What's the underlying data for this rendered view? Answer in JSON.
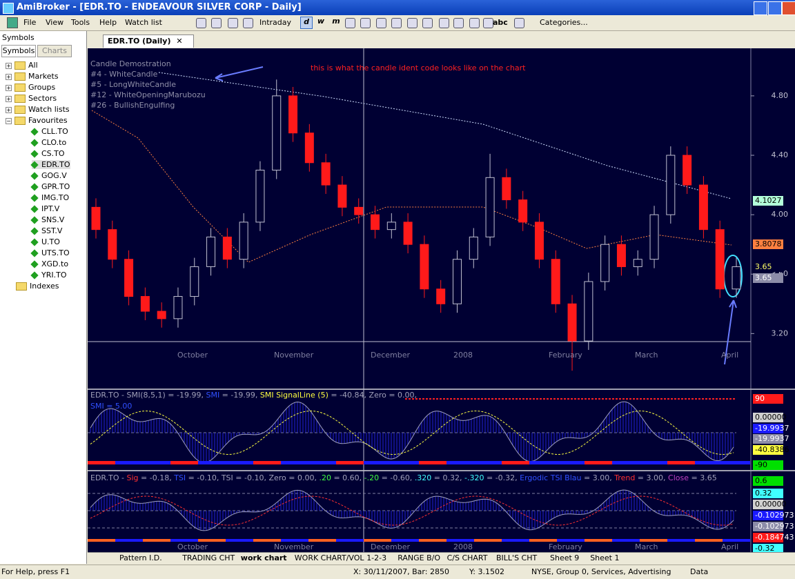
{
  "window": {
    "title": "AmiBroker - [EDR.TO - ENDEAVOUR SILVER CORP - Daily]"
  },
  "menu": [
    "File",
    "View",
    "Tools",
    "Help",
    "Watch list"
  ],
  "toolbar": {
    "buttons": [
      "d",
      "w",
      "m"
    ],
    "intraday": "Intraday",
    "abc": "abc",
    "categories": "Categories..."
  },
  "sidebar": {
    "title": "Symbols",
    "tabs": [
      "Symbols",
      "Charts"
    ],
    "folders": [
      "All",
      "Markets",
      "Groups",
      "Sectors",
      "Watch lists"
    ],
    "favourites": {
      "label": "Favourites",
      "symbols": [
        "CLL.TO",
        "CLO.to",
        "CS.TO",
        "EDR.TO",
        "GOG.V",
        "GPR.TO",
        "IMG.TO",
        "IPT.V",
        "SNS.V",
        "SST.V",
        "U.TO",
        "UTS.TO",
        "XGD.to",
        "YRI.TO"
      ]
    },
    "last": "Indexes"
  },
  "document_tab": "EDR.TO (Daily)",
  "chart_data": {
    "type": "candlestick",
    "annotations": [
      "Candle Demostration",
      "#4 - WhiteCandle",
      "#5 - LongWhiteCandle",
      "#12 - WhiteOpeningMarubozu",
      "#26 - BullishEngulfing"
    ],
    "note": "this is what the candle ident code looks like on the chart",
    "up_color": "#000033",
    "down_color": "#ff1a1a",
    "candles": [
      {
        "open": 4.05,
        "high": 4.11,
        "low": 3.84,
        "close": 3.9
      },
      {
        "open": 3.9,
        "high": 3.96,
        "low": 3.64,
        "close": 3.7
      },
      {
        "open": 3.7,
        "high": 3.76,
        "low": 3.39,
        "close": 3.45
      },
      {
        "open": 3.45,
        "high": 3.51,
        "low": 3.29,
        "close": 3.35
      },
      {
        "open": 3.35,
        "high": 3.41,
        "low": 3.24,
        "close": 3.3
      },
      {
        "open": 3.3,
        "high": 3.51,
        "low": 3.24,
        "close": 3.45
      },
      {
        "open": 3.45,
        "high": 3.71,
        "low": 3.39,
        "close": 3.65
      },
      {
        "open": 3.65,
        "high": 3.91,
        "low": 3.59,
        "close": 3.85
      },
      {
        "open": 3.85,
        "high": 3.91,
        "low": 3.64,
        "close": 3.7
      },
      {
        "open": 3.7,
        "high": 4.01,
        "low": 3.64,
        "close": 3.95
      },
      {
        "open": 3.95,
        "high": 4.36,
        "low": 3.89,
        "close": 4.3
      },
      {
        "open": 4.3,
        "high": 4.91,
        "low": 4.24,
        "close": 4.8
      },
      {
        "open": 4.8,
        "high": 4.86,
        "low": 4.49,
        "close": 4.55
      },
      {
        "open": 4.55,
        "high": 4.61,
        "low": 4.29,
        "close": 4.35
      },
      {
        "open": 4.35,
        "high": 4.41,
        "low": 4.14,
        "close": 4.2
      },
      {
        "open": 4.2,
        "high": 4.26,
        "low": 3.99,
        "close": 4.05
      },
      {
        "open": 4.05,
        "high": 4.11,
        "low": 3.94,
        "close": 4.0
      },
      {
        "open": 4.0,
        "high": 4.06,
        "low": 3.84,
        "close": 3.9
      },
      {
        "open": 3.9,
        "high": 4.01,
        "low": 3.84,
        "close": 3.95
      },
      {
        "open": 3.95,
        "high": 4.01,
        "low": 3.74,
        "close": 3.8
      },
      {
        "open": 3.8,
        "high": 3.86,
        "low": 3.44,
        "close": 3.5
      },
      {
        "open": 3.5,
        "high": 3.56,
        "low": 3.34,
        "close": 3.4
      },
      {
        "open": 3.4,
        "high": 3.76,
        "low": 3.34,
        "close": 3.7
      },
      {
        "open": 3.7,
        "high": 3.91,
        "low": 3.64,
        "close": 3.85
      },
      {
        "open": 3.85,
        "high": 4.41,
        "low": 3.79,
        "close": 4.25
      },
      {
        "open": 4.25,
        "high": 4.31,
        "low": 4.04,
        "close": 4.1
      },
      {
        "open": 4.1,
        "high": 4.16,
        "low": 3.89,
        "close": 3.95
      },
      {
        "open": 3.95,
        "high": 4.01,
        "low": 3.64,
        "close": 3.7
      },
      {
        "open": 3.7,
        "high": 3.76,
        "low": 3.34,
        "close": 3.4
      },
      {
        "open": 3.4,
        "high": 3.46,
        "low": 2.95,
        "close": 3.15
      },
      {
        "open": 3.15,
        "high": 3.61,
        "low": 3.09,
        "close": 3.55
      },
      {
        "open": 3.55,
        "high": 3.86,
        "low": 3.49,
        "close": 3.8
      },
      {
        "open": 3.8,
        "high": 3.86,
        "low": 3.59,
        "close": 3.65
      },
      {
        "open": 3.65,
        "high": 3.76,
        "low": 3.59,
        "close": 3.7
      },
      {
        "open": 3.7,
        "high": 4.06,
        "low": 3.64,
        "close": 4.0
      },
      {
        "open": 4.0,
        "high": 4.46,
        "low": 3.94,
        "close": 4.4
      },
      {
        "open": 4.4,
        "high": 4.46,
        "low": 4.14,
        "close": 4.2
      },
      {
        "open": 4.2,
        "high": 4.26,
        "low": 3.84,
        "close": 3.9
      },
      {
        "open": 3.9,
        "high": 3.96,
        "low": 3.44,
        "close": 3.5
      },
      {
        "open": 3.5,
        "high": 3.71,
        "low": 3.44,
        "close": 3.65
      }
    ],
    "ylim": [
      2.83,
      5.12
    ],
    "yticks": [
      {
        "value": 4.8,
        "label": "4.80"
      },
      {
        "value": 4.4,
        "label": "4.40"
      },
      {
        "value": 4.0,
        "label": "4.00"
      },
      {
        "value": 3.6,
        "label": "3.60"
      },
      {
        "value": 3.2,
        "label": "3.20"
      }
    ],
    "value_boxes": [
      {
        "label": "4.1027",
        "bg": "#b3ffd9",
        "fg": "#000000"
      },
      {
        "label": "3.8078",
        "bg": "#ff8040",
        "fg": "#000000"
      },
      {
        "label": "3.65",
        "bg": "#000033",
        "fg": "#ffff66"
      },
      {
        "label": "3.65",
        "bg": "#8c8ca8",
        "fg": "#ffffff"
      }
    ],
    "x_labels": [
      "October",
      "November",
      "December",
      "2008",
      "February",
      "March",
      "April"
    ],
    "smi": {
      "header": [
        {
          "text": "EDR.TO - SMI(8,5,1) = -19.99, ",
          "color": "#a0a0b8"
        },
        {
          "text": "SMI",
          "color": "#3050ff"
        },
        {
          "text": " = -19.99, ",
          "color": "#a0a0b8"
        },
        {
          "text": "SMI SignalLine (5)",
          "color": "#ffff40"
        },
        {
          "text": " = -40.84, Zero = 0.00,",
          "color": "#a0a0b8"
        }
      ],
      "subheader": {
        "text": "SMI = 5.00",
        "color": "#3050ff"
      },
      "scale": [
        {
          "label": "90",
          "bg": "#ff1a1a",
          "fg": "#ffffff"
        },
        {
          "label": "0.00000",
          "bg": "#d0d0d0",
          "fg": "#000000"
        },
        {
          "label": "-19.9937",
          "bg": "#1a1aff",
          "fg": "#ffffff"
        },
        {
          "label": "-19.9937",
          "bg": "#8c8ca8",
          "fg": "#ffffff"
        },
        {
          "label": "-40.8386",
          "bg": "#ffff40",
          "fg": "#000000"
        },
        {
          "label": "-90",
          "bg": "#00e000",
          "fg": "#000000"
        }
      ]
    },
    "tsi": {
      "header": [
        {
          "text": "EDR.TO - ",
          "color": "#a0a0b8"
        },
        {
          "text": "Sig",
          "color": "#ff3030"
        },
        {
          "text": " = -0.18, ",
          "color": "#a0a0b8"
        },
        {
          "text": "TSI",
          "color": "#3050ff"
        },
        {
          "text": " = -0.10, TSI = -0.10, Zero = 0.00, ",
          "color": "#a0a0b8"
        },
        {
          "text": ".20",
          "color": "#40ff40"
        },
        {
          "text": " = 0.60, ",
          "color": "#a0a0b8"
        },
        {
          "text": "-.20",
          "color": "#40ff40"
        },
        {
          "text": " = -0.60, ",
          "color": "#a0a0b8"
        },
        {
          "text": ".320",
          "color": "#40ffff"
        },
        {
          "text": " = 0.32, ",
          "color": "#a0a0b8"
        },
        {
          "text": "-.320",
          "color": "#40ffff"
        },
        {
          "text": " = -0.32, ",
          "color": "#a0a0b8"
        },
        {
          "text": "Ergodic TSI Blau",
          "color": "#3050ff"
        },
        {
          "text": " = 3.00, ",
          "color": "#a0a0b8"
        },
        {
          "text": "Trend",
          "color": "#ff3030"
        },
        {
          "text": " = 3.00, ",
          "color": "#a0a0b8"
        },
        {
          "text": "Close",
          "color": "#c040c0"
        },
        {
          "text": " = 3.65",
          "color": "#a0a0b8"
        }
      ],
      "scale": [
        {
          "label": "0.6",
          "bg": "#00e000",
          "fg": "#000000"
        },
        {
          "label": "0.32",
          "bg": "#40ffff",
          "fg": "#000000"
        },
        {
          "label": "0.00000",
          "bg": "#d0d0d0",
          "fg": "#000000"
        },
        {
          "label": "-0.102973",
          "bg": "#1a1aff",
          "fg": "#ffffff"
        },
        {
          "label": "-0.102973",
          "bg": "#8c8ca8",
          "fg": "#ffffff"
        },
        {
          "label": "-0.184743",
          "bg": "#ff1a1a",
          "fg": "#ffffff"
        },
        {
          "label": "-0.32",
          "bg": "#40ffff",
          "fg": "#000000"
        }
      ]
    }
  },
  "sheet_tabs": [
    "Pattern I.D.",
    "TRADING CHT",
    "work chart",
    "WORK CHART/VOL",
    "1-2-3",
    "RANGE B/O",
    "C/S CHART",
    "BILL'S CHT",
    "Sheet 9",
    "Sheet 1"
  ],
  "status_bar": [
    "For Help, press F1",
    "X: 30/11/2007, Bar: 2850",
    "Y: 3.1502",
    "NYSE, Group 0, Services, Advertising",
    "Data"
  ]
}
